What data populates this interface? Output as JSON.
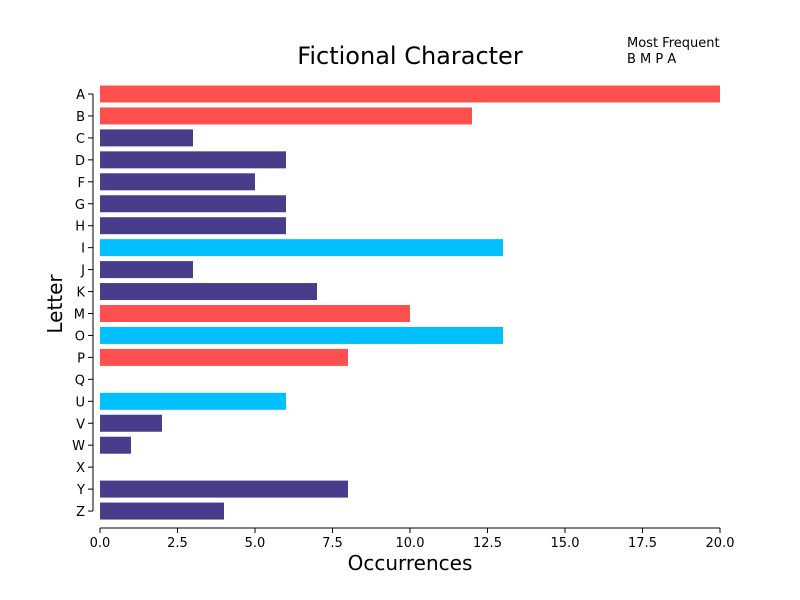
{
  "chart_data": {
    "type": "bar",
    "orientation": "horizontal",
    "title": "Fictional Character",
    "xlabel": "Occurrences",
    "ylabel": "Letter",
    "xlim": [
      0,
      20
    ],
    "xticks": [
      "0.0",
      "2.5",
      "5.0",
      "7.5",
      "10.0",
      "12.5",
      "15.0",
      "17.5",
      "20.0"
    ],
    "xtick_values": [
      0,
      2.5,
      5,
      7.5,
      10,
      12.5,
      15,
      17.5,
      20
    ],
    "categories": [
      "A",
      "B",
      "C",
      "D",
      "F",
      "G",
      "H",
      "I",
      "J",
      "K",
      "M",
      "O",
      "P",
      "Q",
      "U",
      "V",
      "W",
      "X",
      "Y",
      "Z"
    ],
    "values": [
      20,
      12,
      3,
      6,
      5,
      6,
      6,
      13,
      3,
      7,
      10,
      13,
      8,
      0,
      6,
      2,
      1,
      0,
      8,
      4
    ],
    "groups": [
      "frequent",
      "frequent",
      "other",
      "other",
      "other",
      "other",
      "other",
      "vowel",
      "other",
      "other",
      "frequent",
      "vowel",
      "frequent",
      "other",
      "vowel",
      "other",
      "other",
      "other",
      "other",
      "other"
    ],
    "colors": {
      "frequent": "#ff5050",
      "vowel": "#00bfff",
      "other": "#483d8b"
    },
    "annotation": {
      "title": "Most Frequent",
      "letters": "B M P A"
    },
    "grid": false
  }
}
